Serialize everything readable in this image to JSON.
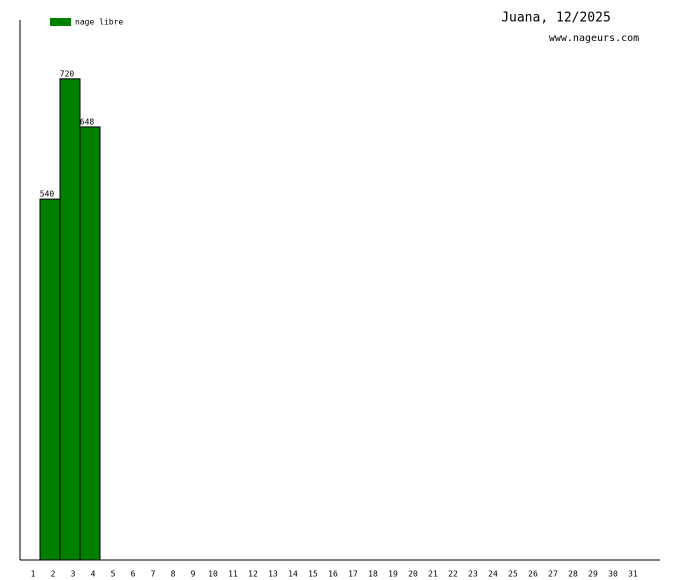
{
  "chart_data": {
    "type": "bar",
    "title": "Juana, 12/2025",
    "subtitle": "www.nageurs.com",
    "categories": [
      "1",
      "2",
      "3",
      "4",
      "5",
      "6",
      "7",
      "8",
      "9",
      "10",
      "11",
      "12",
      "13",
      "14",
      "15",
      "16",
      "17",
      "18",
      "19",
      "20",
      "21",
      "22",
      "23",
      "24",
      "25",
      "26",
      "27",
      "28",
      "29",
      "30",
      "31"
    ],
    "series": [
      {
        "name": "nage libre",
        "color": "#008000",
        "values": [
          null,
          540,
          720,
          648,
          null,
          null,
          null,
          null,
          null,
          null,
          null,
          null,
          null,
          null,
          null,
          null,
          null,
          null,
          null,
          null,
          null,
          null,
          null,
          null,
          null,
          null,
          null,
          null,
          null,
          null,
          null
        ]
      }
    ],
    "ylim": [
      0,
      808
    ],
    "legend": "top-left"
  }
}
